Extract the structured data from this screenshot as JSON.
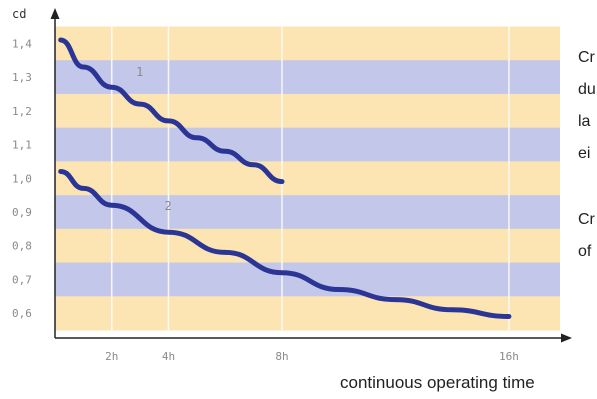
{
  "chart_data": {
    "type": "line",
    "title": "",
    "ylabel": "cd",
    "xlabel": "continuous operating time",
    "ylim": [
      0.55,
      1.45
    ],
    "xlim": [
      0,
      17.8
    ],
    "yticks": [
      0.6,
      0.7,
      0.8,
      0.9,
      1.0,
      1.1,
      1.2,
      1.3,
      1.4
    ],
    "yticks_labels": [
      "0,6",
      "0,7",
      "0,8",
      "0,9",
      "1,0",
      "1,1",
      "1,2",
      "1,3",
      "1,4"
    ],
    "xticks": [
      2,
      4,
      8,
      16
    ],
    "xticks_labels": [
      "2h",
      "4h",
      "8h",
      "16h"
    ],
    "grid": true,
    "series": [
      {
        "name": "1",
        "x": [
          0.2,
          1,
          2,
          3,
          4,
          5,
          6,
          7,
          8
        ],
        "y": [
          1.41,
          1.33,
          1.27,
          1.22,
          1.17,
          1.12,
          1.08,
          1.04,
          0.99
        ]
      },
      {
        "name": "2",
        "x": [
          0.2,
          1,
          2,
          4,
          6,
          8,
          10,
          12,
          14,
          16
        ],
        "y": [
          1.02,
          0.97,
          0.92,
          0.84,
          0.78,
          0.72,
          0.67,
          0.64,
          0.61,
          0.59
        ]
      }
    ],
    "colors": {
      "band_yellow": "#fde4b3",
      "band_blue": "#c3c8ea",
      "line": "#2a3596",
      "axis": "#222222"
    }
  },
  "side_text": {
    "lines": [
      "Cr",
      "du",
      "la",
      "ei",
      "Cr",
      "of"
    ]
  }
}
